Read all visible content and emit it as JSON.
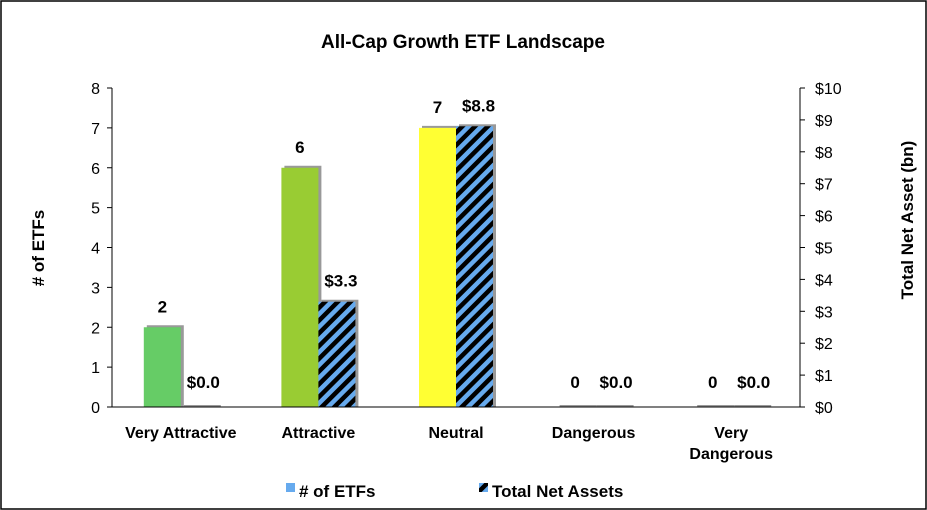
{
  "chart_data": {
    "type": "bar",
    "title": "All-Cap Growth ETF Landscape",
    "categories": [
      "Very Attractive",
      "Attractive",
      "Neutral",
      "Dangerous",
      "Very Dangerous"
    ],
    "category_lines": [
      [
        "Very Attractive"
      ],
      [
        "Attractive"
      ],
      [
        "Neutral"
      ],
      [
        "Dangerous"
      ],
      [
        "Very",
        "Dangerous"
      ]
    ],
    "series": [
      {
        "name": "# of ETFs",
        "axis": "left",
        "values": [
          2,
          6,
          7,
          0,
          0
        ],
        "labels": [
          "2",
          "6",
          "7",
          "0",
          "0"
        ],
        "colors": [
          "#66cc66",
          "#99cc33",
          "#ffff33",
          "#66cc66",
          "#66cc66"
        ]
      },
      {
        "name": "Total Net Assets",
        "axis": "right",
        "values": [
          0.0,
          3.3,
          8.8,
          0.0,
          0.0
        ],
        "labels": [
          "$0.0",
          "$3.3",
          "$8.8",
          "$0.0",
          "$0.0"
        ],
        "pattern": "hatched",
        "colors": [
          "#66aaee",
          "#000000"
        ]
      }
    ],
    "ylabel": "# of ETFs",
    "y2label": "Total Net Asset (bn)",
    "ylim": [
      0,
      8
    ],
    "y2lim": [
      0,
      10
    ],
    "yticks": [
      "0",
      "1",
      "2",
      "3",
      "4",
      "5",
      "6",
      "7",
      "8"
    ],
    "y2ticks": [
      "$0",
      "$1",
      "$2",
      "$3",
      "$4",
      "$5",
      "$6",
      "$7",
      "$8",
      "$9",
      "$10"
    ],
    "legend": {
      "position": "bottom",
      "entries": [
        "# of ETFs",
        "Total Net Assets"
      ],
      "colors": [
        "#66aaee",
        "#66aaee"
      ]
    },
    "grid": false
  }
}
